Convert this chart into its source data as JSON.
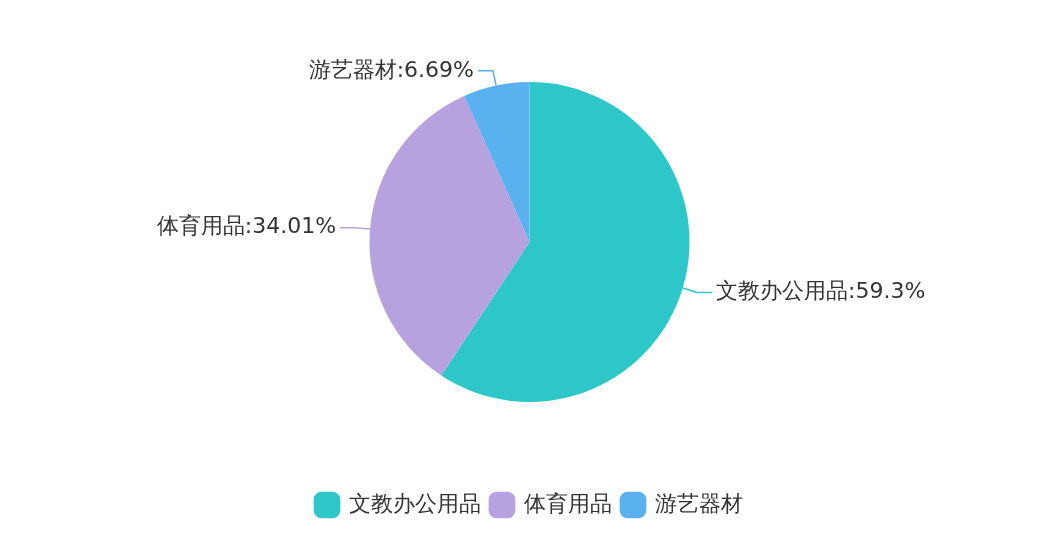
{
  "chart_data": {
    "type": "pie",
    "categories": [
      "文教办公用品",
      "体育用品",
      "游艺器材"
    ],
    "values": [
      59.3,
      34.01,
      6.69
    ],
    "colors": [
      "#2ec7c9",
      "#b6a2de",
      "#5ab1ef"
    ],
    "value_labels": [
      "文教办公用品:59.3%",
      "体育用品:34.01%",
      "游艺器材:6.69%"
    ],
    "legend": "bottom"
  }
}
